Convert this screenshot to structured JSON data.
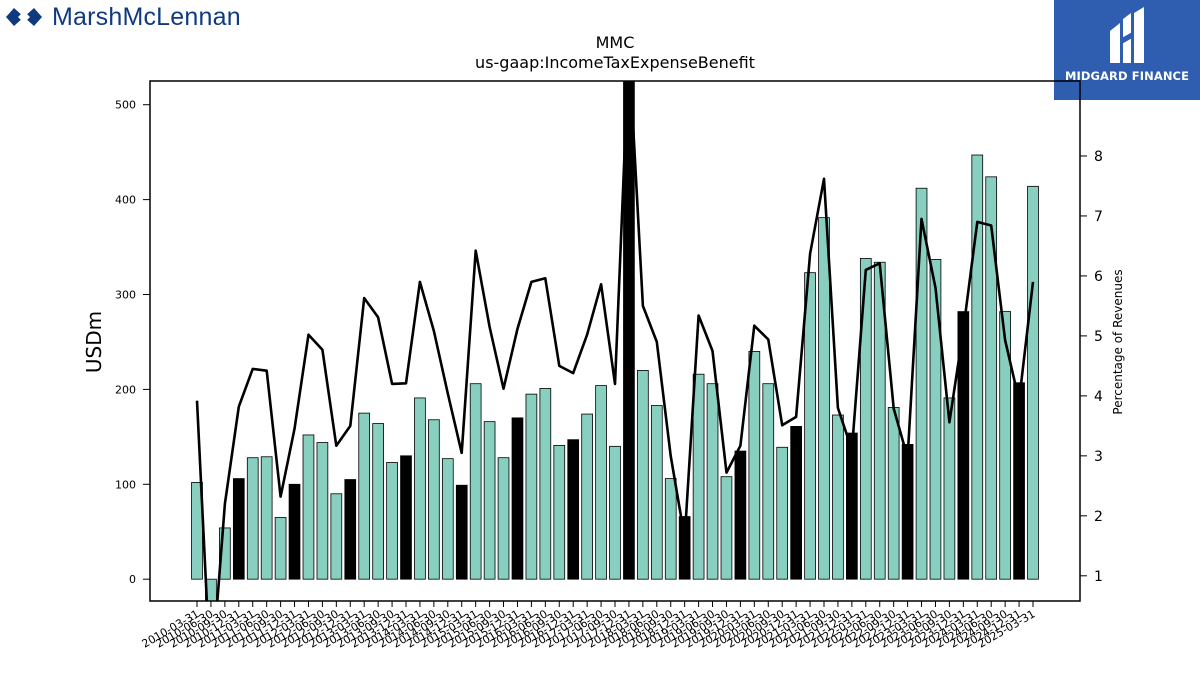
{
  "brand": {
    "name": "MarshMcLennan",
    "color": "#0f3a80"
  },
  "badge": {
    "name": "MIDGARD FINANCE",
    "color": "#2f5db0"
  },
  "chart_data": {
    "type": "bar",
    "title": "MMC",
    "subtitle": "us-gaap:IncomeTaxExpenseBenefit",
    "ylabel": "USDm",
    "y2label": "Percentage of Revenues",
    "ylim": [
      -23,
      525
    ],
    "y2lim": [
      0.58,
      9.25
    ],
    "yticks": [
      0,
      100,
      200,
      300,
      400,
      500
    ],
    "y2ticks": [
      1,
      2,
      3,
      4,
      5,
      6,
      7,
      8
    ],
    "colors": {
      "quarterly": "#88cfbf",
      "annual": "#000000",
      "line": "#000000"
    },
    "categories": [
      "2010-03-31",
      "2010-06-30",
      "2010-09-30",
      "2010-12-31",
      "2011-03-31",
      "2011-06-30",
      "2011-09-30",
      "2011-12-31",
      "2012-03-31",
      "2012-06-30",
      "2012-09-30",
      "2012-12-31",
      "2013-03-31",
      "2013-06-30",
      "2013-09-30",
      "2013-12-31",
      "2014-03-31",
      "2014-06-30",
      "2014-09-30",
      "2014-12-31",
      "2015-03-31",
      "2015-06-30",
      "2015-09-30",
      "2015-12-31",
      "2016-03-31",
      "2016-06-30",
      "2016-09-30",
      "2016-12-31",
      "2017-03-31",
      "2017-06-30",
      "2017-09-30",
      "2017-12-31",
      "2018-03-31",
      "2018-06-30",
      "2018-09-30",
      "2018-12-31",
      "2019-03-31",
      "2019-06-30",
      "2019-09-30",
      "2019-12-31",
      "2020-03-31",
      "2020-06-30",
      "2020-09-30",
      "2020-12-31",
      "2021-03-31",
      "2021-06-30",
      "2021-09-30",
      "2021-12-31",
      "2022-03-31",
      "2022-06-30",
      "2022-09-30",
      "2022-12-31",
      "2023-03-31",
      "2023-06-30",
      "2023-09-30",
      "2023-12-31",
      "2024-03-31",
      "2024-06-30",
      "2024-09-30",
      "2024-12-31",
      "2025-03-31"
    ],
    "xtick_labels": [
      "2010-03-31",
      "2010-06-30",
      "2010-09-30",
      "2010-12-31",
      "2011-03-31",
      "2011-06-30",
      "2011-09-30",
      "2011-12-31",
      "2012-03-31",
      "2012-06-30",
      "2012-09-30",
      "2012-12-31",
      "2013-03-31",
      "2013-06-30",
      "2013-09-30",
      "2013-12-31",
      "2014-03-31",
      "2014-06-30",
      "2014-09-30",
      "2014-12-31",
      "2015-03-31",
      "2015-06-30",
      "2015-09-30",
      "2015-12-31",
      "2016-03-31",
      "2016-06-30",
      "2016-09-30",
      "2016-12-31",
      "2017-03-31",
      "2017-06-30",
      "2017-09-30",
      "2017-12-31",
      "2018-03-31",
      "2018-06-30",
      "2018-09-30",
      "2018-12-31",
      "2019-03-31",
      "2019-06-30",
      "2019-09-30",
      "2019-12-31",
      "2020-03-31",
      "2020-06-30",
      "2020-09-30",
      "2020-12-31",
      "2021-03-31",
      "2021-06-30",
      "2021-09-30",
      "2021-12-31",
      "2022-03-31",
      "2022-06-30",
      "2022-09-30",
      "2022-12-31",
      "2023-03-31",
      "2023-06-30",
      "2023-09-30",
      "2023-12-31",
      "2024-03-31",
      "2024-06-30",
      "2024-09-30",
      "2024-12-31",
      "2025-03-31"
    ],
    "series": [
      {
        "type": "bar",
        "values": [
          102,
          -28,
          54,
          106,
          128,
          129,
          65,
          100,
          152,
          144,
          90,
          105,
          175,
          164,
          123,
          130,
          191,
          168,
          127,
          99,
          206,
          166,
          128,
          170,
          195,
          201,
          141,
          147,
          174,
          204,
          140,
          560,
          220,
          183,
          106,
          66,
          216,
          206,
          108,
          135,
          240,
          206,
          139,
          161,
          323,
          381,
          173,
          154,
          338,
          334,
          181,
          142,
          412,
          337,
          191,
          282,
          447,
          424,
          282,
          207,
          414
        ],
        "annual": [
          false,
          false,
          false,
          true,
          false,
          false,
          false,
          true,
          false,
          false,
          false,
          true,
          false,
          false,
          false,
          true,
          false,
          false,
          false,
          true,
          false,
          false,
          false,
          true,
          false,
          false,
          false,
          true,
          false,
          false,
          false,
          true,
          false,
          false,
          false,
          true,
          false,
          false,
          false,
          true,
          false,
          false,
          false,
          true,
          false,
          false,
          false,
          true,
          false,
          false,
          false,
          true,
          false,
          false,
          false,
          true,
          false,
          false,
          false,
          true,
          false
        ]
      },
      {
        "type": "line",
        "axis": "right",
        "values": [
          3.92,
          -0.8,
          2.2,
          3.82,
          4.45,
          4.42,
          2.32,
          3.45,
          5.02,
          4.77,
          3.17,
          3.5,
          5.63,
          5.31,
          4.2,
          4.21,
          5.9,
          5.08,
          4.04,
          3.05,
          6.42,
          5.15,
          4.12,
          5.12,
          5.9,
          5.96,
          4.5,
          4.38,
          5.02,
          5.86,
          4.2,
          9.8,
          5.5,
          4.9,
          3.0,
          1.63,
          5.34,
          4.75,
          2.72,
          3.17,
          5.17,
          4.94,
          3.51,
          3.65,
          6.37,
          7.62,
          3.8,
          3.1,
          6.1,
          6.21,
          3.79,
          2.97,
          6.95,
          5.8,
          3.56,
          5.1,
          6.9,
          6.84,
          4.93,
          3.92,
          5.9
        ]
      }
    ]
  }
}
